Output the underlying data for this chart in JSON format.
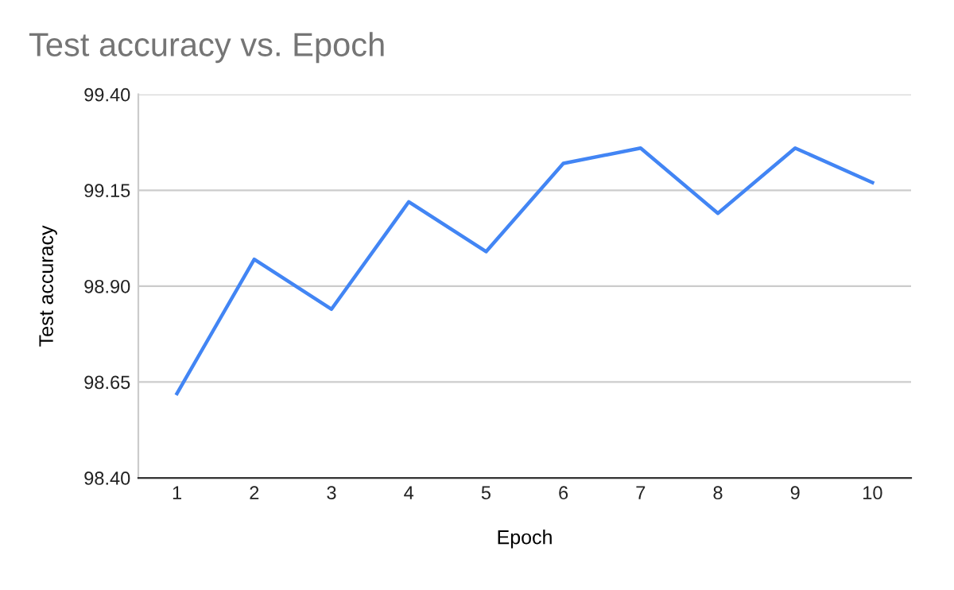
{
  "chart_data": {
    "type": "line",
    "title": "Test accuracy vs. Epoch",
    "xlabel": "Epoch",
    "ylabel": "Test accuracy",
    "categories": [
      "1",
      "2",
      "3",
      "4",
      "5",
      "6",
      "7",
      "8",
      "9",
      "10"
    ],
    "series": [
      {
        "color": "#4285f4",
        "values": [
          98.62,
          98.97,
          98.84,
          99.12,
          98.99,
          99.22,
          99.26,
          99.09,
          99.26,
          99.17
        ]
      }
    ],
    "ylim": [
      98.4,
      99.4
    ],
    "yticks": [
      {
        "value": 98.4,
        "label": "98.40"
      },
      {
        "value": 98.65,
        "label": "98.65"
      },
      {
        "value": 98.9,
        "label": "98.90"
      },
      {
        "value": 99.15,
        "label": "99.15"
      },
      {
        "value": 99.4,
        "label": "99.40"
      }
    ],
    "grid": "y",
    "legend": false,
    "marker": "none",
    "line_style": "solid"
  }
}
